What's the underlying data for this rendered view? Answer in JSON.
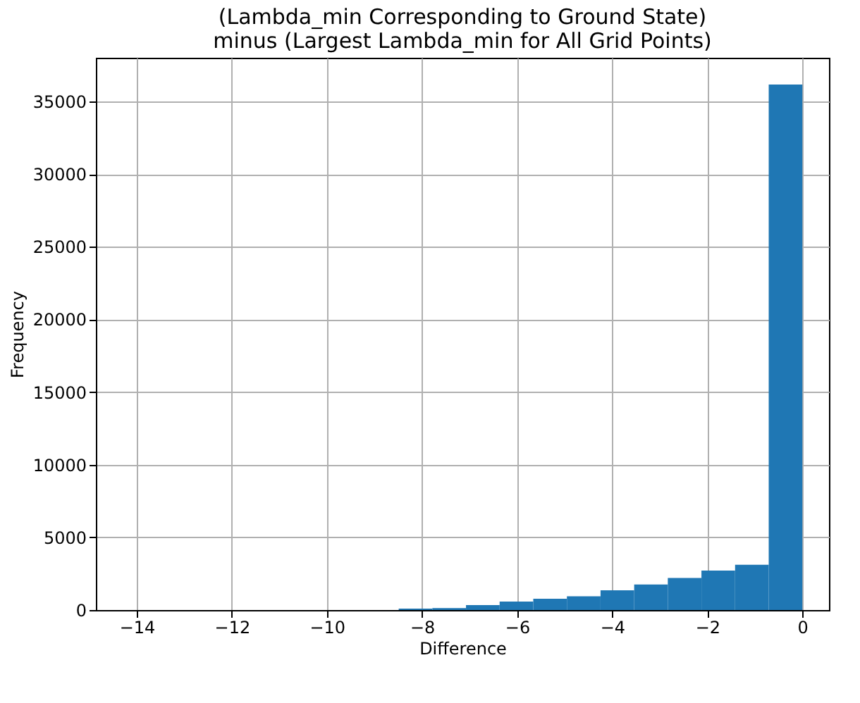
{
  "chart_data": {
    "type": "histogram",
    "title": "(Lambda_min Corresponding to Ground State)\nminus (Largest Lambda_min for All Grid Points)",
    "xlabel": "Difference",
    "ylabel": "Frequency",
    "bins": [
      -14.15,
      -13.4425,
      -12.735,
      -12.0275,
      -11.32,
      -10.6125,
      -9.905,
      -9.1975,
      -8.49,
      -7.7825,
      -7.075,
      -6.3675,
      -5.66,
      -4.9525,
      -4.245,
      -3.5375,
      -2.83,
      -2.1225,
      -1.415,
      -0.7075,
      0
    ],
    "values": [
      0,
      0,
      0,
      0,
      0,
      0,
      0,
      0,
      100,
      130,
      340,
      580,
      780,
      950,
      1360,
      1760,
      2200,
      2720,
      3120,
      36160
    ],
    "color": "#1f77b4",
    "xlim": [
      -14.86,
      0.56
    ],
    "ylim": [
      0,
      38000
    ],
    "xticks": [
      {
        "value": -14,
        "label": "−14"
      },
      {
        "value": -12,
        "label": "−12"
      },
      {
        "value": -10,
        "label": "−10"
      },
      {
        "value": -8,
        "label": "−8"
      },
      {
        "value": -6,
        "label": "−6"
      },
      {
        "value": -4,
        "label": "−4"
      },
      {
        "value": -2,
        "label": "−2"
      },
      0
    ],
    "yticks": [
      0,
      5000,
      10000,
      15000,
      20000,
      25000,
      30000,
      35000
    ],
    "grid": true
  }
}
